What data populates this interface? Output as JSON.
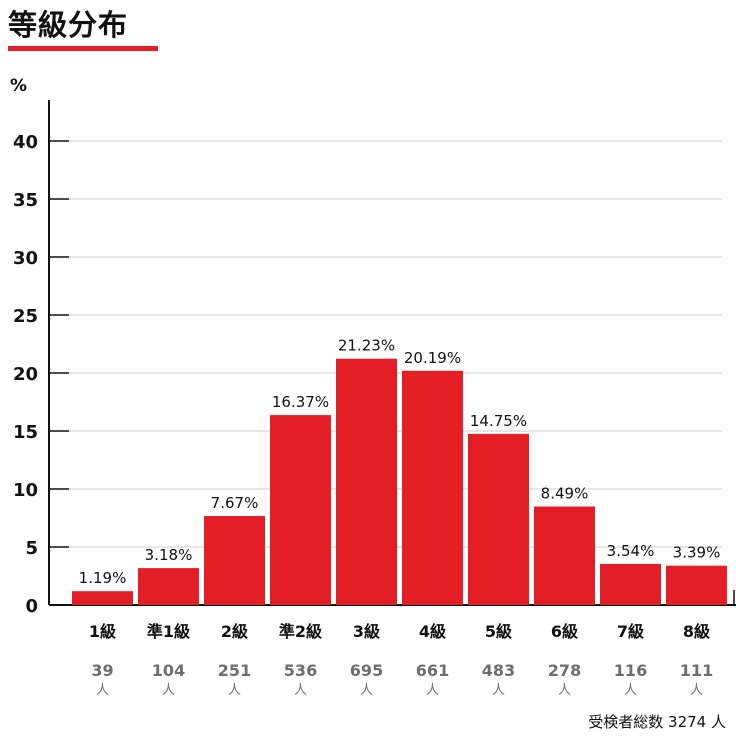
{
  "page": {
    "title": "等級分布",
    "total_label": "受検者総数 3274 人"
  },
  "colors": {
    "bar": "#e31e24",
    "grid": "#cccccc",
    "axis": "#111111",
    "accent": "#e31e24"
  },
  "chart_data": {
    "type": "bar",
    "ylabel": "%",
    "ylim": [
      0,
      45
    ],
    "yticks": [
      0,
      5,
      10,
      15,
      20,
      25,
      30,
      35,
      40
    ],
    "grid": true,
    "categories": [
      "1級",
      "準1級",
      "2級",
      "準2級",
      "3級",
      "4級",
      "5級",
      "6級",
      "7級",
      "8級"
    ],
    "values": [
      1.19,
      3.18,
      7.67,
      16.37,
      21.23,
      20.19,
      14.75,
      8.49,
      3.54,
      3.39
    ],
    "value_labels": [
      "1.19%",
      "3.18%",
      "7.67%",
      "16.37%",
      "21.23%",
      "20.19%",
      "14.75%",
      "8.49%",
      "3.54%",
      "3.39%"
    ],
    "counts": [
      "39",
      "104",
      "251",
      "536",
      "695",
      "661",
      "483",
      "278",
      "116",
      "111"
    ],
    "count_unit": "人"
  }
}
